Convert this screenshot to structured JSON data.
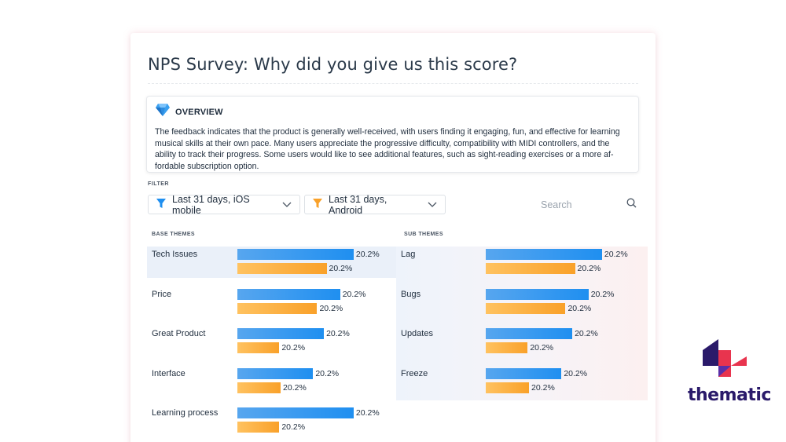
{
  "title": "NPS Survey: Why did you give us this score?",
  "overview": {
    "label": "OVERVIEW",
    "icon": "diamond-icon",
    "text": "The feedback indicates that the product is generally well-received, with users finding it engaging, fun, and effective for learning musical skills at their own pace. Many users appreciate the progressive difficulty, compatibility with MIDI controllers, and the ability to track their progress. Some users would like to see additional features, such as sight-reading exercises or a more af-fordable subscription option."
  },
  "filter": {
    "label": "FILTER",
    "chips": [
      {
        "label": "Last 31 days, iOS mobile",
        "icon_color": "#1f8ff0"
      },
      {
        "label": "Last 31 days, Android",
        "icon_color": "#f9a12a"
      }
    ],
    "search_placeholder": "Search"
  },
  "base_themes": {
    "header": "BASE THEMES",
    "items": [
      {
        "label": "Tech Issues",
        "blue": 0.86,
        "orange": 0.66,
        "blue_label": "20.2%",
        "orange_label": "20.2%",
        "selected": true
      },
      {
        "label": "Price",
        "blue": 0.76,
        "orange": 0.59,
        "blue_label": "20.2%",
        "orange_label": "20.2%"
      },
      {
        "label": "Great Product",
        "blue": 0.64,
        "orange": 0.31,
        "blue_label": "20.2%",
        "orange_label": "20.2%"
      },
      {
        "label": "Interface",
        "blue": 0.56,
        "orange": 0.32,
        "blue_label": "20.2%",
        "orange_label": "20.2%"
      },
      {
        "label": "Learning process",
        "blue": 0.86,
        "orange": 0.31,
        "blue_label": "20.2%",
        "orange_label": "20.2%"
      }
    ]
  },
  "sub_themes": {
    "header": "SUB THEMES",
    "items": [
      {
        "label": "Lag",
        "blue": 0.86,
        "orange": 0.66,
        "blue_label": "20.2%",
        "orange_label": "20.2%"
      },
      {
        "label": "Bugs",
        "blue": 0.76,
        "orange": 0.59,
        "blue_label": "20.2%",
        "orange_label": "20.2%"
      },
      {
        "label": "Updates",
        "blue": 0.64,
        "orange": 0.31,
        "blue_label": "20.2%",
        "orange_label": "20.2%"
      },
      {
        "label": "Freeze",
        "blue": 0.56,
        "orange": 0.32,
        "blue_label": "20.2%",
        "orange_label": "20.2%"
      }
    ]
  },
  "brand": {
    "name": "thematic",
    "colors": {
      "navy": "#2a1a6a",
      "red": "#e8344e",
      "purple": "#5a2fa8"
    }
  },
  "colors": {
    "blue_bar": "#1f8ff0",
    "orange_bar": "#f9a12a"
  }
}
